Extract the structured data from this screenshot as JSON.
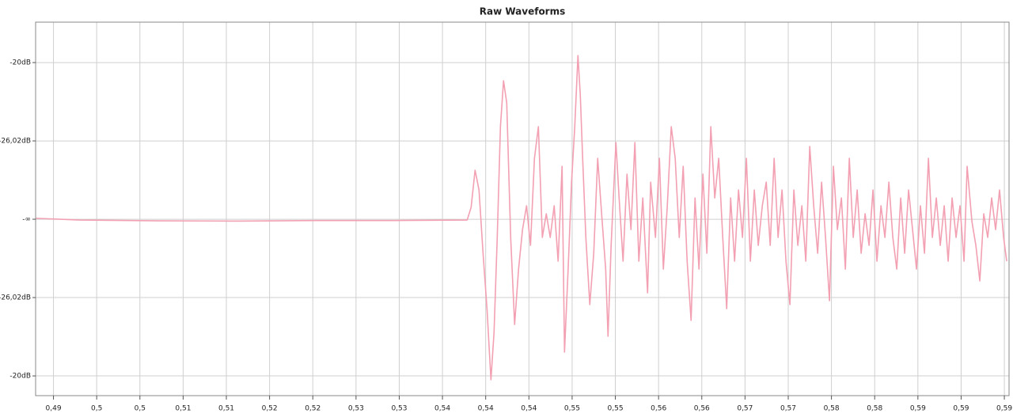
{
  "chart_data": {
    "type": "line",
    "title": "Raw Waveforms",
    "color": "#f2a0b2",
    "grid": true,
    "xlim": [
      0.4918,
      0.5954
    ],
    "ylim": [
      -0.1126,
      0.1258
    ],
    "xticks": [
      {
        "value": 0.4937,
        "label": "0,49"
      },
      {
        "value": 0.4983,
        "label": "0,5"
      },
      {
        "value": 0.5029,
        "label": "0,5"
      },
      {
        "value": 0.5075,
        "label": "0,51"
      },
      {
        "value": 0.5121,
        "label": "0,51"
      },
      {
        "value": 0.5167,
        "label": "0,52"
      },
      {
        "value": 0.5213,
        "label": "0,52"
      },
      {
        "value": 0.5259,
        "label": "0,53"
      },
      {
        "value": 0.5305,
        "label": "0,53"
      },
      {
        "value": 0.5351,
        "label": "0,54"
      },
      {
        "value": 0.5397,
        "label": "0,54"
      },
      {
        "value": 0.5443,
        "label": "0,54"
      },
      {
        "value": 0.5489,
        "label": "0,55"
      },
      {
        "value": 0.5535,
        "label": "0,55"
      },
      {
        "value": 0.5581,
        "label": "0,56"
      },
      {
        "value": 0.5627,
        "label": "0,56"
      },
      {
        "value": 0.5673,
        "label": "0,57"
      },
      {
        "value": 0.5719,
        "label": "0,57"
      },
      {
        "value": 0.5765,
        "label": "0,58"
      },
      {
        "value": 0.5811,
        "label": "0,58"
      },
      {
        "value": 0.5857,
        "label": "0,59"
      },
      {
        "value": 0.5903,
        "label": "0,59"
      },
      {
        "value": 0.5949,
        "label": "0,59"
      }
    ],
    "yticks": [
      {
        "value": 0.1,
        "label": "-20dB"
      },
      {
        "value": 0.05,
        "label": "-26,02dB"
      },
      {
        "value": 0,
        "label": "-∞"
      },
      {
        "value": -0.05,
        "label": "-26,02dB"
      },
      {
        "value": -0.1,
        "label": "-20dB"
      }
    ],
    "x": [
      0.49185,
      0.49648,
      0.5049,
      0.51332,
      0.52173,
      0.53015,
      0.53773,
      0.53815,
      0.53857,
      0.53899,
      0.53942,
      0.53984,
      0.54026,
      0.54059,
      0.54093,
      0.54127,
      0.5416,
      0.54194,
      0.54236,
      0.54278,
      0.5432,
      0.54362,
      0.54405,
      0.54447,
      0.54489,
      0.54531,
      0.54573,
      0.54615,
      0.54657,
      0.54699,
      0.54741,
      0.54783,
      0.54809,
      0.54851,
      0.54884,
      0.54918,
      0.54952,
      0.54977,
      0.55002,
      0.55036,
      0.55078,
      0.5512,
      0.55162,
      0.55204,
      0.55247,
      0.55272,
      0.55305,
      0.55356,
      0.5539,
      0.55432,
      0.55474,
      0.55516,
      0.55558,
      0.556,
      0.55642,
      0.55693,
      0.55726,
      0.55777,
      0.55819,
      0.55861,
      0.55903,
      0.55945,
      0.55987,
      0.5603,
      0.56072,
      0.56114,
      0.56156,
      0.56198,
      0.5624,
      0.56282,
      0.56324,
      0.56366,
      0.56408,
      0.5645,
      0.56493,
      0.56535,
      0.56577,
      0.56619,
      0.56661,
      0.56703,
      0.56745,
      0.56787,
      0.56829,
      0.56871,
      0.56914,
      0.56956,
      0.56998,
      0.5704,
      0.57082,
      0.57124,
      0.57166,
      0.57208,
      0.5725,
      0.57292,
      0.57335,
      0.57377,
      0.57419,
      0.57461,
      0.57503,
      0.57545,
      0.57587,
      0.57629,
      0.57671,
      0.57713,
      0.57756,
      0.57798,
      0.5784,
      0.57882,
      0.57924,
      0.57966,
      0.58008,
      0.5805,
      0.58092,
      0.58134,
      0.58177,
      0.58219,
      0.58261,
      0.58303,
      0.58345,
      0.58387,
      0.58429,
      0.58471,
      0.58513,
      0.58555,
      0.58597,
      0.5864,
      0.58682,
      0.58724,
      0.58766,
      0.58808,
      0.5885,
      0.58892,
      0.58934,
      0.58976,
      0.59018,
      0.59061,
      0.59094,
      0.59145,
      0.59187,
      0.59229,
      0.59271,
      0.59313,
      0.59355,
      0.59397,
      0.59439,
      0.59482,
      0.59515
    ],
    "values": [
      0.0006,
      -0.0005,
      -0.001,
      -0.0012,
      -0.0008,
      -0.0008,
      -0.0005,
      0.0076,
      0.0313,
      0.0187,
      -0.0217,
      -0.0571,
      -0.1025,
      -0.0722,
      -0.0116,
      0.0591,
      0.0884,
      0.0742,
      -0.0116,
      -0.0672,
      -0.0318,
      -0.0066,
      0.0086,
      -0.0167,
      0.0389,
      0.0591,
      -0.0116,
      0.0035,
      -0.0116,
      0.0086,
      -0.0268,
      0.0338,
      -0.0848,
      -0.0268,
      0.0237,
      0.0591,
      0.1045,
      0.0793,
      0.0389,
      -0.0116,
      -0.0545,
      -0.0217,
      0.0389,
      0.0035,
      -0.0318,
      -0.0747,
      -0.0167,
      0.049,
      0.0136,
      -0.0268,
      0.0288,
      -0.0066,
      0.049,
      -0.0268,
      0.0136,
      -0.047,
      0.0237,
      -0.0116,
      0.0389,
      -0.0318,
      0.0086,
      0.0591,
      0.0389,
      -0.0116,
      0.0338,
      -0.0268,
      -0.0646,
      0.0136,
      -0.0318,
      0.0288,
      -0.0217,
      0.0591,
      0.0136,
      0.0389,
      -0.0116,
      -0.0571,
      0.0136,
      -0.0268,
      0.0187,
      -0.0116,
      0.0389,
      -0.0268,
      0.0187,
      -0.0167,
      0.0086,
      0.0237,
      -0.0167,
      0.0389,
      -0.0116,
      0.0187,
      -0.0268,
      -0.0545,
      0.0187,
      -0.0167,
      0.0086,
      -0.0268,
      0.0465,
      0.0086,
      -0.0217,
      0.0237,
      -0.0116,
      -0.052,
      0.0338,
      -0.0066,
      0.0136,
      -0.0318,
      0.0389,
      -0.0116,
      0.0187,
      -0.0217,
      0.0035,
      -0.0167,
      0.0187,
      -0.0268,
      0.0086,
      -0.0116,
      0.0237,
      -0.0116,
      -0.0318,
      0.0136,
      -0.0217,
      0.0187,
      -0.0066,
      -0.0318,
      0.0086,
      -0.0217,
      0.0389,
      -0.0116,
      0.0136,
      -0.0167,
      0.0086,
      -0.0268,
      0.0136,
      -0.0116,
      0.0086,
      -0.0268,
      0.0338,
      -0.0015,
      -0.0167,
      -0.0394,
      0.0035,
      -0.0116,
      0.0136,
      -0.0066,
      0.0187,
      -0.0116,
      -0.0268
    ]
  }
}
